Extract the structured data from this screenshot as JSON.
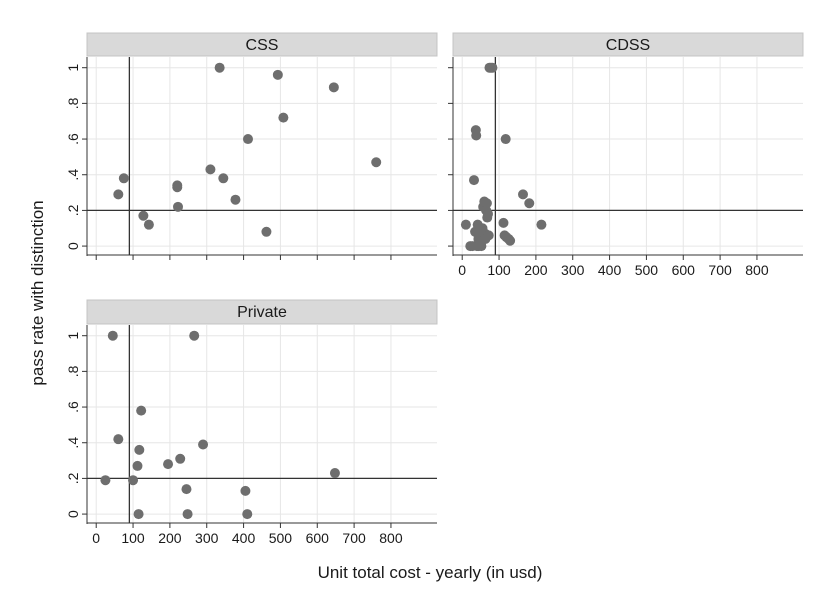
{
  "chart_data": {
    "type": "scatter",
    "ylabel": "pass rate with distinction",
    "xlabel": "Unit total cost - yearly (in usd)",
    "x_ticks": [
      "0",
      "100",
      "200",
      "300",
      "400",
      "500",
      "600",
      "700",
      "800"
    ],
    "y_ticks": [
      "0",
      ".2",
      ".4",
      ".6",
      ".8",
      "1"
    ],
    "xlim": [
      -25,
      925
    ],
    "ylim": [
      -0.05,
      1.06
    ],
    "grid": true,
    "reference_lines": {
      "x": 90,
      "y": 0.2
    },
    "marker_color": "#6e6e6e",
    "strip_color": "#d9d9d9",
    "panels": [
      {
        "title": "CSS",
        "points": [
          [
            60,
            0.29
          ],
          [
            75,
            0.38
          ],
          [
            128,
            0.17
          ],
          [
            143,
            0.12
          ],
          [
            220,
            0.34
          ],
          [
            220,
            0.33
          ],
          [
            222,
            0.22
          ],
          [
            310,
            0.43
          ],
          [
            335,
            1.0
          ],
          [
            345,
            0.38
          ],
          [
            378,
            0.26
          ],
          [
            412,
            0.6
          ],
          [
            462,
            0.08
          ],
          [
            493,
            0.96
          ],
          [
            508,
            0.72
          ],
          [
            645,
            0.89
          ],
          [
            760,
            0.47
          ]
        ]
      },
      {
        "title": "CDSS",
        "points": [
          [
            10,
            0.12
          ],
          [
            22,
            0.0
          ],
          [
            28,
            0.0
          ],
          [
            32,
            0.37
          ],
          [
            35,
            0.08
          ],
          [
            37,
            0.65
          ],
          [
            38,
            0.62
          ],
          [
            40,
            0.0
          ],
          [
            42,
            0.12
          ],
          [
            44,
            0.04
          ],
          [
            45,
            0.0
          ],
          [
            47,
            0.08
          ],
          [
            50,
            0.02
          ],
          [
            52,
            0.0
          ],
          [
            55,
            0.1
          ],
          [
            57,
            0.22
          ],
          [
            60,
            0.25
          ],
          [
            62,
            0.07
          ],
          [
            63,
            0.04
          ],
          [
            65,
            0.2
          ],
          [
            67,
            0.24
          ],
          [
            68,
            0.16
          ],
          [
            70,
            0.18
          ],
          [
            72,
            0.06
          ],
          [
            74,
            1.0
          ],
          [
            78,
            1.0
          ],
          [
            82,
            1.0
          ],
          [
            112,
            0.13
          ],
          [
            115,
            0.06
          ],
          [
            118,
            0.6
          ],
          [
            120,
            0.05
          ],
          [
            126,
            0.04
          ],
          [
            130,
            0.03
          ],
          [
            165,
            0.29
          ],
          [
            182,
            0.24
          ],
          [
            215,
            0.12
          ]
        ]
      },
      {
        "title": "Private",
        "points": [
          [
            25,
            0.19
          ],
          [
            45,
            1.0
          ],
          [
            60,
            0.42
          ],
          [
            100,
            0.19
          ],
          [
            112,
            0.27
          ],
          [
            115,
            0.0
          ],
          [
            117,
            0.36
          ],
          [
            122,
            0.58
          ],
          [
            195,
            0.28
          ],
          [
            228,
            0.31
          ],
          [
            245,
            0.14
          ],
          [
            248,
            0.0
          ],
          [
            266,
            1.0
          ],
          [
            290,
            0.39
          ],
          [
            405,
            0.13
          ],
          [
            410,
            0.0
          ],
          [
            648,
            0.23
          ]
        ]
      }
    ]
  }
}
